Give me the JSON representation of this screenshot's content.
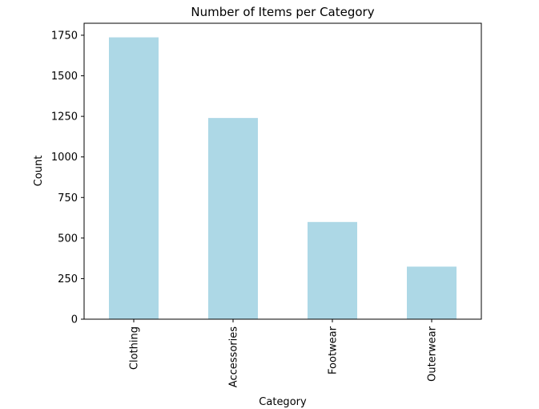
{
  "chart_data": {
    "type": "bar",
    "title": "Number of Items per Category",
    "xlabel": "Category",
    "ylabel": "Count",
    "categories": [
      "Clothing",
      "Accessories",
      "Footwear",
      "Outerwear"
    ],
    "values": [
      1737,
      1240,
      599,
      324
    ],
    "ylim": [
      0,
      1823.85
    ],
    "yticks": [
      0,
      250,
      500,
      750,
      1000,
      1250,
      1500,
      1750
    ],
    "bar_color": "#add8e6",
    "grid": false,
    "legend": "none"
  }
}
